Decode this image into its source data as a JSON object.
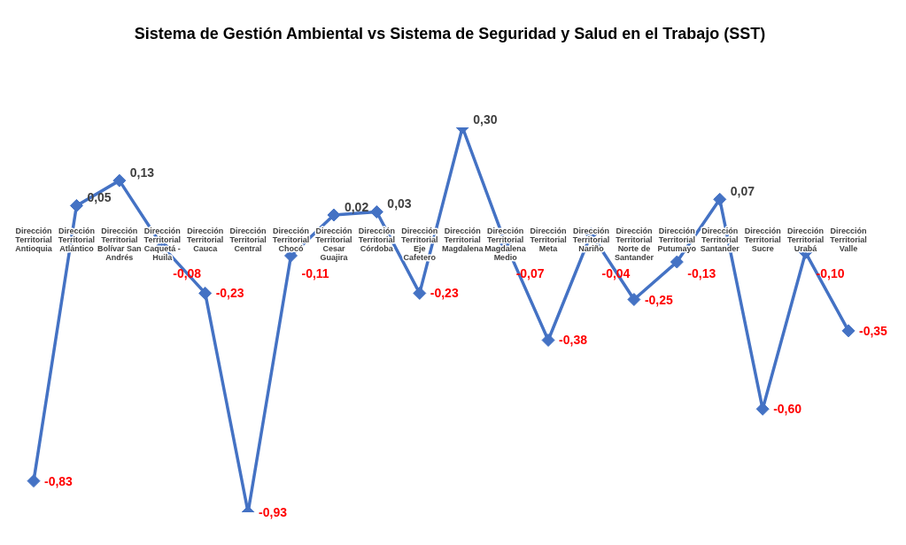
{
  "chart_data": {
    "type": "line",
    "title": "Sistema de Gestión Ambiental vs Sistema de Seguridad y Salud en el Trabajo (SST)",
    "categories": [
      "Dirección Territorial Antioquia",
      "Dirección Territorial Atlántico",
      "Dirección Territorial Bolívar San Andrés",
      "Dirección Territorial Caquetá - Huila",
      "Dirección Territorial Cauca",
      "Dirección Territorial Central",
      "Dirección Territorial Chocó",
      "Dirección Territorial Cesar Guajira",
      "Dirección Territorial Córdoba",
      "Dirección Territorial Eje Cafetero",
      "Dirección Territorial Magdalena",
      "Dirección Territorial Magdalena Medio",
      "Dirección Territorial Meta",
      "Dirección Territorial Nariño",
      "Dirección Territorial Norte de Santander",
      "Dirección Territorial Putumayo",
      "Dirección Territorial Santander",
      "Dirección Territorial Sucre",
      "Dirección Territorial Urabá",
      "Dirección Territorial Valle"
    ],
    "series": [
      {
        "color": "#4472c4",
        "values": [
          -0.83,
          0.05,
          0.13,
          -0.08,
          -0.23,
          -0.93,
          -0.11,
          0.02,
          0.03,
          -0.23,
          0.3,
          -0.07,
          -0.38,
          -0.04,
          -0.25,
          -0.13,
          0.07,
          -0.6,
          -0.1,
          -0.35
        ],
        "value_labels": [
          "-0,83",
          "0,05",
          "0,13",
          "-0,08",
          "-0,23",
          "-0,93",
          "-0,11",
          "0,02",
          "0,03",
          "-0,23",
          "0,30",
          "-0,07",
          "-0,38",
          "-0,04",
          "-0,25",
          "-0,13",
          "0,07",
          "-0,60",
          "-0,10",
          "-0,35"
        ]
      }
    ],
    "marker": "diamond",
    "line_style": "solid"
  }
}
